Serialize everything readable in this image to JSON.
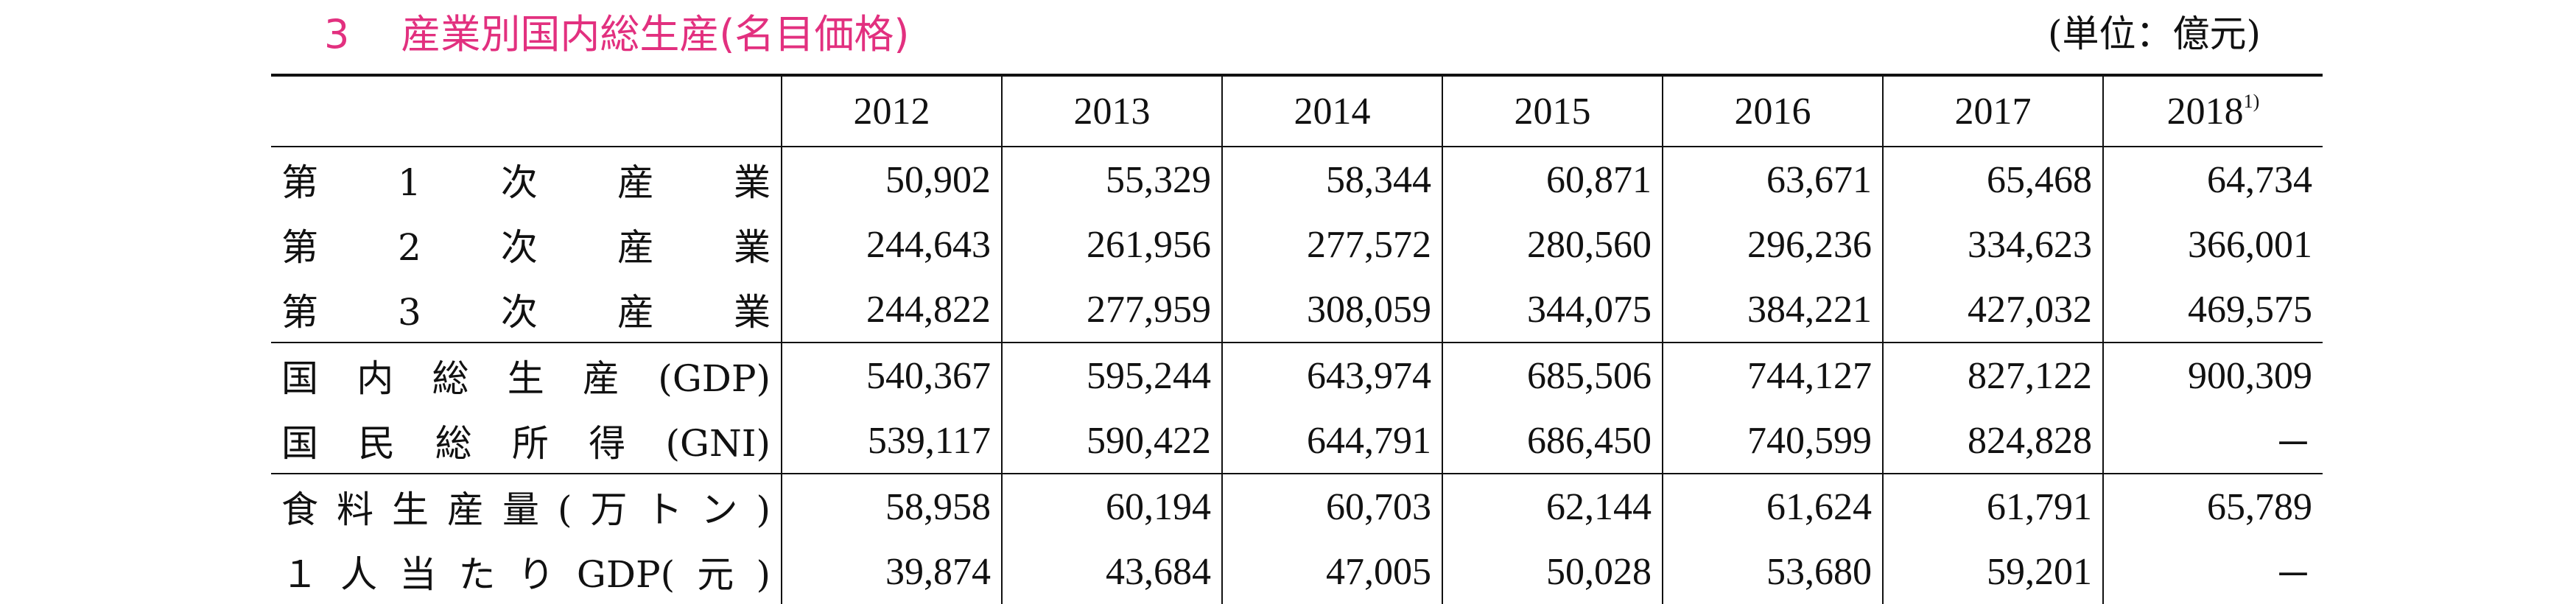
{
  "header": {
    "number": "3",
    "title": "産業別国内総生産(名目価格)",
    "unit": "(単位：億元)"
  },
  "table": {
    "columns": [
      "2012",
      "2013",
      "2014",
      "2015",
      "2016",
      "2017",
      "2018"
    ],
    "column_note": "1)",
    "rows": [
      {
        "label": "第1次産業",
        "cells": [
          "50,902",
          "55,329",
          "58,344",
          "60,871",
          "63,671",
          "65,468",
          "64,734"
        ]
      },
      {
        "label": "第2次産業",
        "cells": [
          "244,643",
          "261,956",
          "277,572",
          "280,560",
          "296,236",
          "334,623",
          "366,001"
        ]
      },
      {
        "label": "第3次産業",
        "cells": [
          "244,822",
          "277,959",
          "308,059",
          "344,075",
          "384,221",
          "427,032",
          "469,575"
        ]
      },
      {
        "label": "国内総生産(GDP)",
        "cells": [
          "540,367",
          "595,244",
          "643,974",
          "685,506",
          "744,127",
          "827,122",
          "900,309"
        ]
      },
      {
        "label": "国民総所得(GNI)",
        "cells": [
          "539,117",
          "590,422",
          "644,791",
          "686,450",
          "740,599",
          "824,828",
          "－"
        ]
      },
      {
        "label": "食料生産量(万トン)",
        "cells": [
          "58,958",
          "60,194",
          "60,703",
          "62,144",
          "61,624",
          "61,791",
          "65,789"
        ]
      },
      {
        "label": "１人当たりGDP(元)",
        "cells": [
          "39,874",
          "43,684",
          "47,005",
          "50,028",
          "53,680",
          "59,201",
          "－"
        ]
      }
    ]
  }
}
